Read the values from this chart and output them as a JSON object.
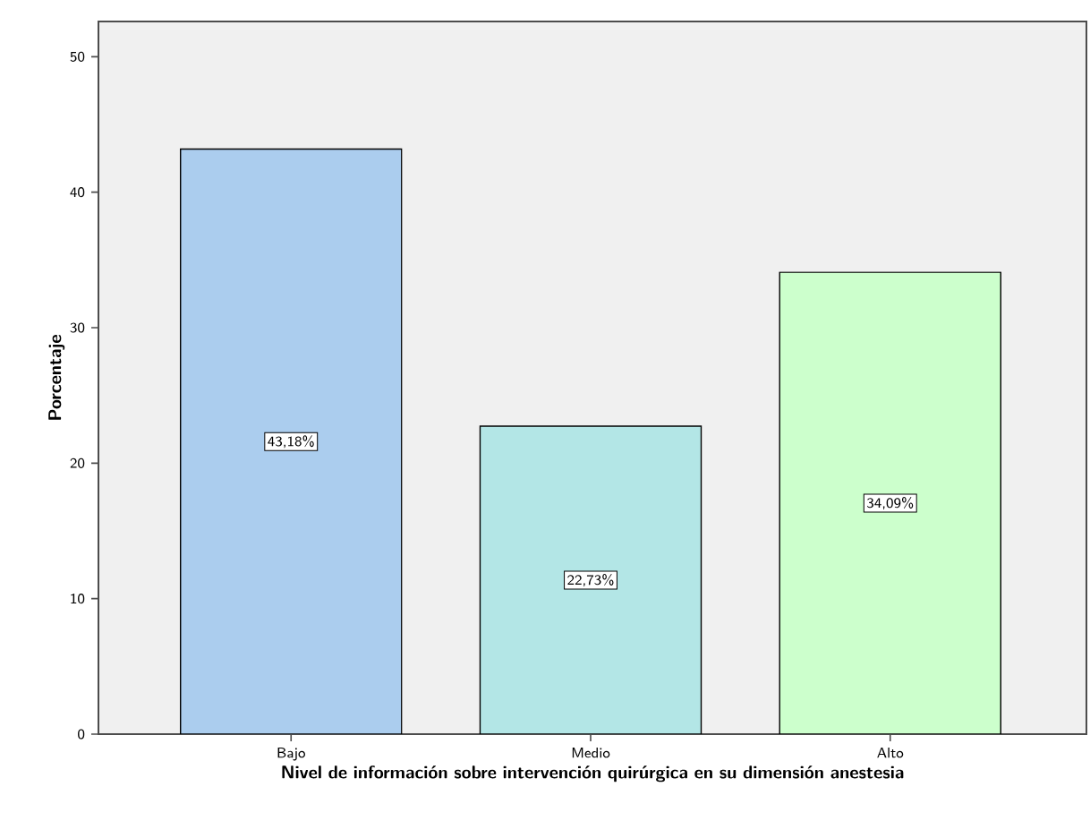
{
  "chart_data": {
    "type": "bar",
    "xlabel": "Nivel de información sobre intervención quirúrgica en su dimensión anestesia",
    "ylabel": "Porcentaje",
    "categories": [
      "Bajo",
      "Medio",
      "Alto"
    ],
    "values": [
      43.18,
      22.73,
      34.09
    ],
    "colors": [
      "#abcdee",
      "#b3e6e6",
      "#ccffcc"
    ],
    "value_labels": [
      "43,18%",
      "22,73%",
      "34,09%"
    ],
    "ylim": [
      0,
      52.6
    ],
    "yticks": [
      0,
      10,
      20,
      30,
      40,
      50
    ]
  }
}
